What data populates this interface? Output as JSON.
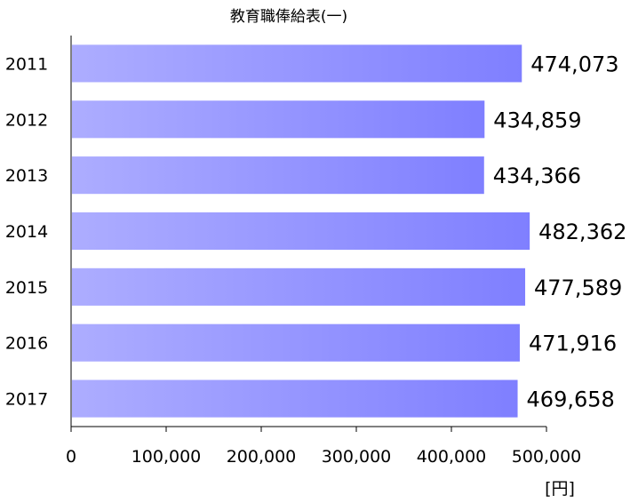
{
  "chart_data": {
    "type": "bar",
    "orientation": "horizontal",
    "title": "教育職俸給表(一)",
    "categories": [
      "2011",
      "2012",
      "2013",
      "2014",
      "2015",
      "2016",
      "2017"
    ],
    "values": [
      474073,
      434859,
      434366,
      482362,
      477589,
      471916,
      469658
    ],
    "value_labels": [
      "474,073",
      "434,859",
      "434,366",
      "482,362",
      "477,589",
      "471,916",
      "469,658"
    ],
    "x_ticks": [
      "0",
      "100,000",
      "200,000",
      "300,000",
      "400,000",
      "500,000"
    ],
    "xlim": [
      0,
      500000
    ],
    "unit": "[円]",
    "grid": false,
    "legend": "none",
    "bar_color_start": "#adadff",
    "bar_color_end": "#7f7fff"
  }
}
